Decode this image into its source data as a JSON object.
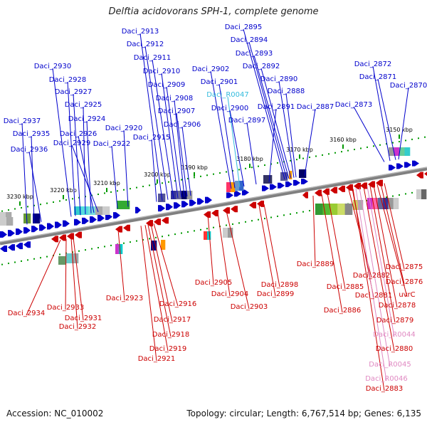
{
  "title": "Delftia acidovorans SPH-1, complete genome",
  "footer": {
    "accession": "Accession: NC_010002",
    "topology": "Topology: circular; Length: 6,767,514 bp; Genes: 6,135"
  },
  "colors": {
    "top_strand": "#0000cc",
    "bottom_strand": "#cc0000",
    "top_rna": "#33bbdd",
    "bottom_rna": "#e089c2",
    "ruler": "#009900",
    "backbone": "#808080"
  },
  "ticks": [
    "3150 kbp",
    "3160 kbp",
    "3170 kbp",
    "3180 kbp",
    "3190 kbp",
    "3200 kbp",
    "3210 kbp",
    "3220 kbp",
    "3230 kbp"
  ],
  "top_labels": [
    "Daci_2895",
    "Daci_2894",
    "Daci_2893",
    "Daci_2892",
    "Daci_2890",
    "Daci_2888",
    "Daci_2891",
    "Daci_2887",
    "Daci_2913",
    "Daci_2912",
    "Daci_2911",
    "Daci_2910",
    "Daci_2909",
    "Daci_2908",
    "Daci_2907",
    "Daci_2906",
    "Daci_2902",
    "Daci_2901",
    "Daci_R0047",
    "Daci_2900",
    "Daci_2897",
    "Daci_2930",
    "Daci_2928",
    "Daci_2927",
    "Daci_2925",
    "Daci_2924",
    "Daci_2926",
    "Daci_2929",
    "Daci_2922",
    "Daci_2920",
    "Daci_2915",
    "Daci_2937",
    "Daci_2935",
    "Daci_2936",
    "Daci_2872",
    "Daci_2871",
    "Daci_2870",
    "Daci_2873"
  ],
  "bottom_labels": [
    "Daci_2934",
    "Daci_2933",
    "Daci_2931",
    "Daci_2932",
    "Daci_2923",
    "Daci_2916",
    "Daci_2917",
    "Daci_2918",
    "Daci_2919",
    "Daci_2921",
    "Daci_2905",
    "Daci_2904",
    "Daci_2903",
    "Daci_2898",
    "Daci_2899",
    "Daci_2889",
    "Daci_2886",
    "Daci_2885",
    "Daci_2882",
    "Daci_2881",
    "uvrC",
    "Daci_2878",
    "Daci_2879",
    "Daci_R0044",
    "Daci_2880",
    "Daci_R0045",
    "Daci_R0046",
    "Daci_2883",
    "Daci_2875",
    "Daci_2876"
  ]
}
